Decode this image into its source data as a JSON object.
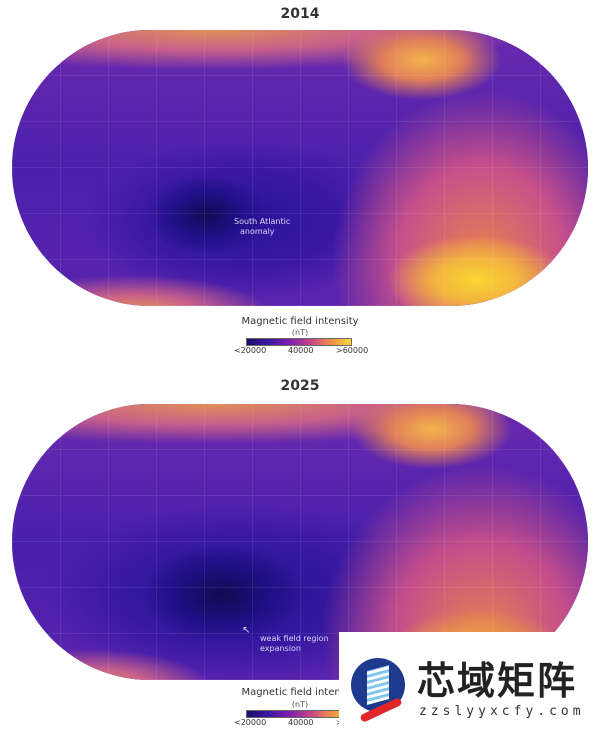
{
  "maps": [
    {
      "year": "2014",
      "annotation_lines": [
        "South Atlantic",
        "anomaly"
      ]
    },
    {
      "year": "2025",
      "annotation_lines": [
        "weak field region",
        "expansion"
      ]
    }
  ],
  "legend": {
    "title": "Magnetic field intensity",
    "unit": "(nT)",
    "min_label": "<20000",
    "mid_label": "40000",
    "max_label": ">60000",
    "colors": [
      "#1a0d6b",
      "#7a1fb0",
      "#ef8a4a",
      "#f8d93a"
    ]
  },
  "watermark": {
    "text": "芯域矩阵",
    "url": "zzslyyxcfy.com"
  }
}
